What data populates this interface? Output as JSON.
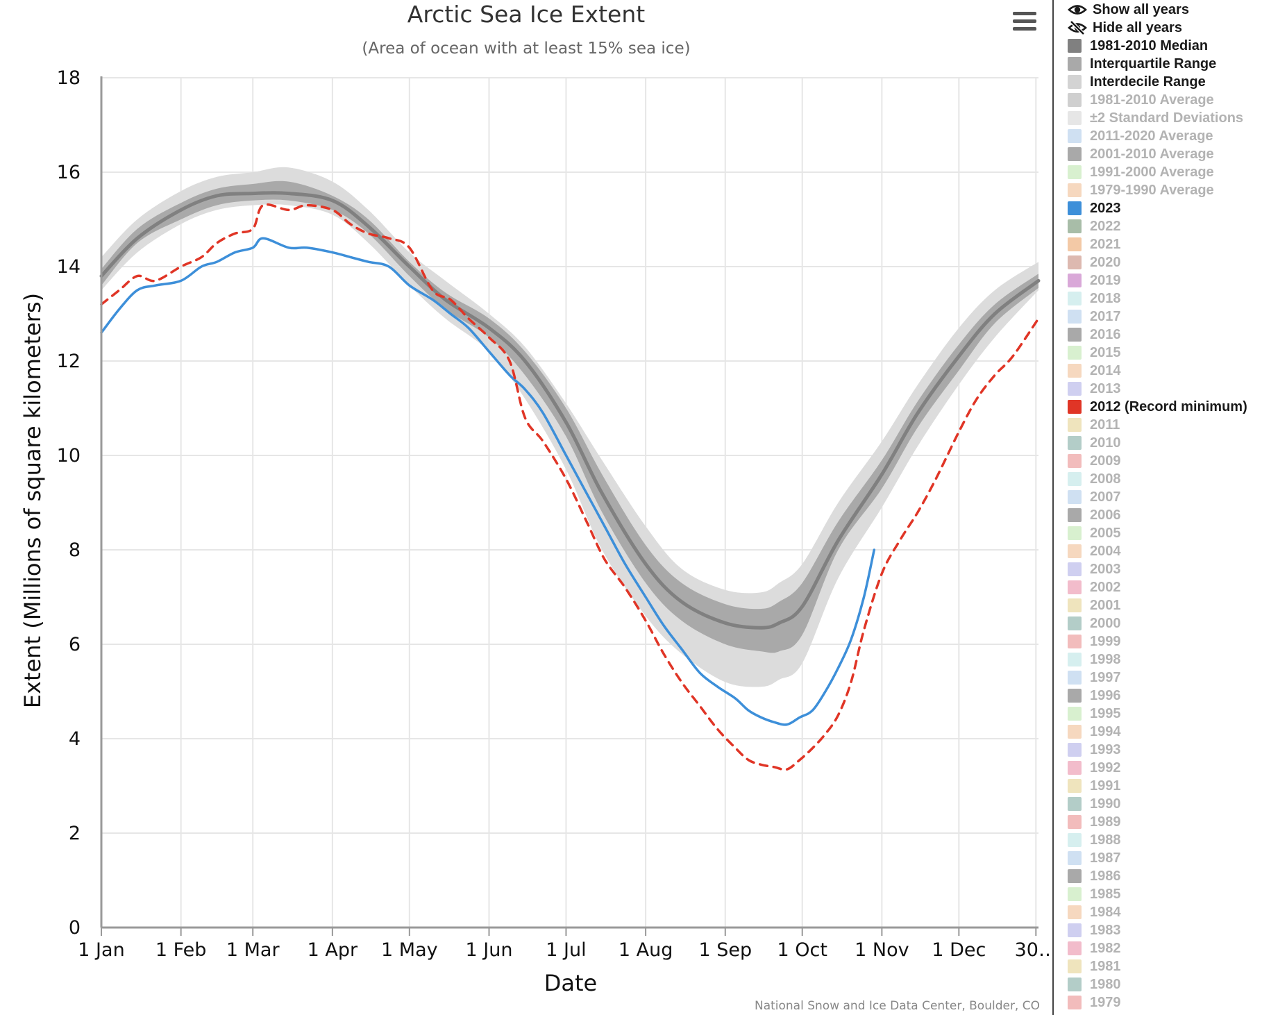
{
  "chart_data": {
    "type": "area",
    "title": "Arctic Sea Ice Extent",
    "subtitle": "(Area of ocean with at least 15% sea ice)",
    "xlabel": "Date",
    "ylabel": "Extent (Millions of square kilometers)",
    "credit": "National Snow and Ice Data Center, Boulder, CO",
    "xlim": [
      1,
      366
    ],
    "ylim": [
      0,
      18
    ],
    "y_ticks": [
      0,
      2,
      4,
      6,
      8,
      10,
      12,
      14,
      16,
      18
    ],
    "x_ticks": [
      {
        "day": 1,
        "label": "1 Jan"
      },
      {
        "day": 32,
        "label": "1 Feb"
      },
      {
        "day": 60,
        "label": "1 Mar"
      },
      {
        "day": 91,
        "label": "1 Apr"
      },
      {
        "day": 121,
        "label": "1 May"
      },
      {
        "day": 152,
        "label": "1 Jun"
      },
      {
        "day": 182,
        "label": "1 Jul"
      },
      {
        "day": 213,
        "label": "1 Aug"
      },
      {
        "day": 244,
        "label": "1 Sep"
      },
      {
        "day": 274,
        "label": "1 Oct"
      },
      {
        "day": 305,
        "label": "1 Nov"
      },
      {
        "day": 335,
        "label": "1 Dec"
      },
      {
        "day": 365,
        "label": "30…"
      }
    ],
    "grid": true,
    "legend_position": "right",
    "x": [
      1,
      15,
      32,
      46,
      60,
      74,
      91,
      105,
      121,
      135,
      152,
      166,
      182,
      196,
      213,
      227,
      244,
      258,
      265,
      274,
      288,
      305,
      319,
      335,
      349,
      366
    ],
    "bands": [
      {
        "name": "Interdecile Range",
        "color": "#dcdcdc",
        "lower": [
          13.5,
          14.3,
          14.9,
          15.2,
          15.3,
          15.3,
          15.1,
          14.5,
          13.6,
          12.9,
          12.2,
          11.2,
          9.7,
          8.0,
          6.6,
          5.8,
          5.2,
          5.1,
          5.25,
          5.6,
          7.4,
          8.9,
          10.2,
          11.5,
          12.5,
          13.5
        ],
        "upper": [
          14.2,
          15.0,
          15.6,
          15.9,
          16.0,
          16.1,
          15.8,
          15.2,
          14.3,
          13.7,
          13.0,
          12.3,
          11.1,
          9.9,
          8.5,
          7.6,
          7.15,
          7.1,
          7.3,
          7.7,
          9.0,
          10.3,
          11.5,
          12.7,
          13.5,
          14.1
        ]
      },
      {
        "name": "Interquartile Range",
        "color": "#a9a9a9",
        "lower": [
          13.6,
          14.5,
          15.0,
          15.3,
          15.4,
          15.4,
          15.2,
          14.7,
          13.8,
          13.1,
          12.5,
          11.7,
          10.4,
          8.8,
          7.3,
          6.5,
          6.0,
          5.85,
          5.85,
          6.2,
          8.0,
          9.3,
          10.6,
          11.8,
          12.8,
          13.55
        ],
        "upper": [
          13.95,
          14.8,
          15.35,
          15.65,
          15.75,
          15.8,
          15.5,
          15.0,
          14.1,
          13.45,
          12.9,
          12.2,
          11.0,
          9.6,
          8.1,
          7.3,
          6.85,
          6.75,
          6.9,
          7.3,
          8.6,
          9.9,
          11.15,
          12.35,
          13.2,
          13.85
        ]
      }
    ],
    "series": [
      {
        "name": "1981-2010 Median",
        "color": "#808080",
        "style": "solid",
        "values": [
          13.8,
          14.6,
          15.2,
          15.5,
          15.55,
          15.55,
          15.4,
          14.85,
          14.0,
          13.3,
          12.7,
          12.0,
          10.7,
          9.2,
          7.7,
          6.9,
          6.45,
          6.35,
          6.45,
          6.8,
          8.2,
          9.6,
          10.9,
          12.1,
          13.0,
          13.7
        ]
      },
      {
        "name": "2023",
        "color": "#3d8fd9",
        "style": "solid",
        "x": [
          1,
          8,
          15,
          22,
          32,
          40,
          46,
          53,
          60,
          64,
          74,
          81,
          91,
          98,
          105,
          113,
          121,
          130,
          137,
          144,
          152,
          160,
          166,
          173,
          182,
          190,
          197,
          205,
          213,
          220,
          227,
          234,
          241,
          248,
          253,
          258,
          263,
          268,
          273,
          278,
          283,
          288,
          293,
          298,
          302
        ],
        "values": [
          12.6,
          13.1,
          13.5,
          13.6,
          13.7,
          14.0,
          14.1,
          14.3,
          14.4,
          14.6,
          14.4,
          14.4,
          14.3,
          14.2,
          14.1,
          14.0,
          13.6,
          13.3,
          13.0,
          12.7,
          12.2,
          11.7,
          11.4,
          10.9,
          10.0,
          9.2,
          8.5,
          7.7,
          7.0,
          6.4,
          5.9,
          5.4,
          5.1,
          4.85,
          4.6,
          4.45,
          4.35,
          4.3,
          4.45,
          4.6,
          5.0,
          5.5,
          6.1,
          7.0,
          8.0
        ]
      },
      {
        "name": "2012 (Record minimum)",
        "color": "#e03526",
        "style": "dashed",
        "x": [
          1,
          8,
          15,
          22,
          32,
          40,
          46,
          53,
          60,
          64,
          74,
          81,
          91,
          98,
          105,
          113,
          121,
          130,
          137,
          144,
          152,
          160,
          166,
          173,
          182,
          190,
          197,
          205,
          213,
          220,
          227,
          234,
          241,
          248,
          253,
          258,
          263,
          268,
          273,
          278,
          283,
          288,
          293,
          298,
          305,
          312,
          319,
          326,
          335,
          342,
          349,
          356,
          366
        ],
        "values": [
          13.2,
          13.5,
          13.8,
          13.7,
          14.0,
          14.2,
          14.5,
          14.7,
          14.8,
          15.3,
          15.2,
          15.3,
          15.2,
          14.9,
          14.7,
          14.6,
          14.4,
          13.5,
          13.3,
          12.9,
          12.5,
          12.0,
          10.8,
          10.3,
          9.5,
          8.6,
          7.8,
          7.2,
          6.5,
          5.8,
          5.2,
          4.7,
          4.2,
          3.8,
          3.55,
          3.45,
          3.4,
          3.35,
          3.55,
          3.8,
          4.1,
          4.5,
          5.2,
          6.3,
          7.5,
          8.2,
          8.8,
          9.5,
          10.5,
          11.2,
          11.7,
          12.1,
          12.9
        ]
      }
    ]
  },
  "menu": {
    "icon": "hamburger-menu-icon"
  },
  "legend": {
    "controls": [
      {
        "label": "Show all years",
        "icon": "eye-icon"
      },
      {
        "label": "Hide all years",
        "icon": "eye-slash-icon"
      }
    ],
    "items": [
      {
        "label": "1981-2010 Median",
        "color": "#808080",
        "active": true
      },
      {
        "label": "Interquartile Range",
        "color": "#a9a9a9",
        "active": true
      },
      {
        "label": "Interdecile Range",
        "color": "#d3d3d3",
        "active": true
      },
      {
        "label": "1981-2010 Average",
        "color": "#cfcfcf",
        "active": false
      },
      {
        "label": "±2 Standard Deviations",
        "color": "#e6e6e6",
        "active": false
      },
      {
        "label": "2011-2020 Average",
        "color": "#cfe0f2",
        "active": false
      },
      {
        "label": "2001-2010 Average",
        "color": "#a9a9a9",
        "active": false
      },
      {
        "label": "1991-2000 Average",
        "color": "#d8f0cf",
        "active": false
      },
      {
        "label": "1979-1990 Average",
        "color": "#f6d8bf",
        "active": false
      },
      {
        "label": "2023",
        "color": "#3d8fd9",
        "active": true
      },
      {
        "label": "2022",
        "color": "#a8bda8",
        "active": false
      },
      {
        "label": "2021",
        "color": "#f3c9a6",
        "active": false
      },
      {
        "label": "2020",
        "color": "#ddb9b0",
        "active": false
      },
      {
        "label": "2019",
        "color": "#d9a8d8",
        "active": false
      },
      {
        "label": "2018",
        "color": "#d6efef",
        "active": false
      },
      {
        "label": "2017",
        "color": "#cfe0f2",
        "active": false
      },
      {
        "label": "2016",
        "color": "#a9a9a9",
        "active": false
      },
      {
        "label": "2015",
        "color": "#d8f0cf",
        "active": false
      },
      {
        "label": "2014",
        "color": "#f6d8bf",
        "active": false
      },
      {
        "label": "2013",
        "color": "#cfcff0",
        "active": false
      },
      {
        "label": "2012 (Record minimum)",
        "color": "#e03526",
        "active": true
      },
      {
        "label": "2011",
        "color": "#efe4bd",
        "active": false
      },
      {
        "label": "2010",
        "color": "#b3cdc8",
        "active": false
      },
      {
        "label": "2009",
        "color": "#f2bcbc",
        "active": false
      },
      {
        "label": "2008",
        "color": "#d6efef",
        "active": false
      },
      {
        "label": "2007",
        "color": "#cfe0f2",
        "active": false
      },
      {
        "label": "2006",
        "color": "#a9a9a9",
        "active": false
      },
      {
        "label": "2005",
        "color": "#d8f0cf",
        "active": false
      },
      {
        "label": "2004",
        "color": "#f6d8bf",
        "active": false
      },
      {
        "label": "2003",
        "color": "#cfcff0",
        "active": false
      },
      {
        "label": "2002",
        "color": "#f2bccb",
        "active": false
      },
      {
        "label": "2001",
        "color": "#efe4bd",
        "active": false
      },
      {
        "label": "2000",
        "color": "#b3cdc8",
        "active": false
      },
      {
        "label": "1999",
        "color": "#f2bcbc",
        "active": false
      },
      {
        "label": "1998",
        "color": "#d6efef",
        "active": false
      },
      {
        "label": "1997",
        "color": "#cfe0f2",
        "active": false
      },
      {
        "label": "1996",
        "color": "#a9a9a9",
        "active": false
      },
      {
        "label": "1995",
        "color": "#d8f0cf",
        "active": false
      },
      {
        "label": "1994",
        "color": "#f6d8bf",
        "active": false
      },
      {
        "label": "1993",
        "color": "#cfcff0",
        "active": false
      },
      {
        "label": "1992",
        "color": "#f2bccb",
        "active": false
      },
      {
        "label": "1991",
        "color": "#efe4bd",
        "active": false
      },
      {
        "label": "1990",
        "color": "#b3cdc8",
        "active": false
      },
      {
        "label": "1989",
        "color": "#f2bcbc",
        "active": false
      },
      {
        "label": "1988",
        "color": "#d6efef",
        "active": false
      },
      {
        "label": "1987",
        "color": "#cfe0f2",
        "active": false
      },
      {
        "label": "1986",
        "color": "#a9a9a9",
        "active": false
      },
      {
        "label": "1985",
        "color": "#d8f0cf",
        "active": false
      },
      {
        "label": "1984",
        "color": "#f6d8bf",
        "active": false
      },
      {
        "label": "1983",
        "color": "#cfcff0",
        "active": false
      },
      {
        "label": "1982",
        "color": "#f2bccb",
        "active": false
      },
      {
        "label": "1981",
        "color": "#efe4bd",
        "active": false
      },
      {
        "label": "1980",
        "color": "#b3cdc8",
        "active": false
      },
      {
        "label": "1979",
        "color": "#f2bcbc",
        "active": false
      }
    ]
  }
}
